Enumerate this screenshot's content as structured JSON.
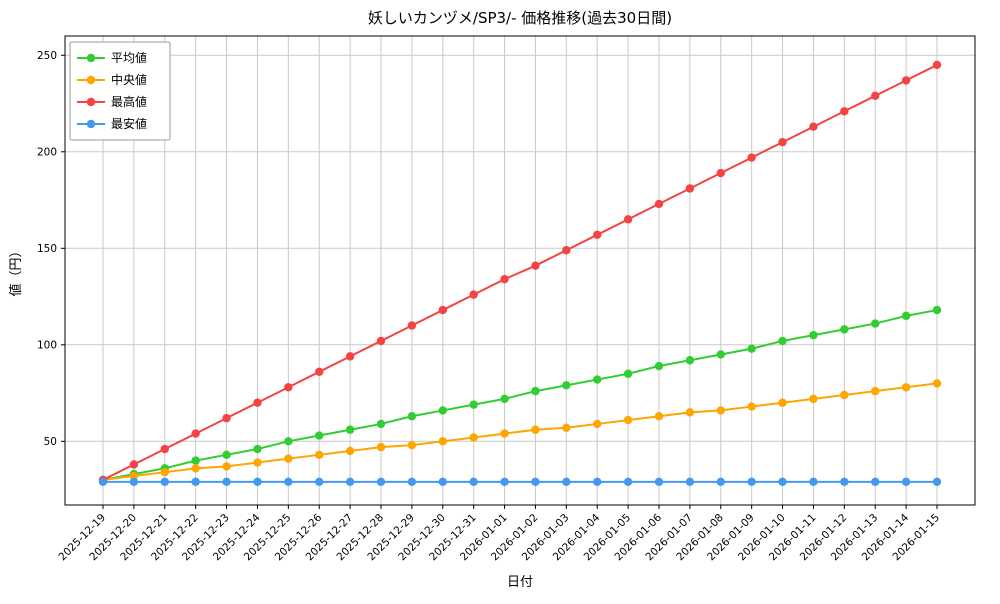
{
  "chart_data": {
    "type": "line",
    "title": "妖しいカンヅメ/SP3/- 価格推移(過去30日間)",
    "xlabel": "日付",
    "ylabel": "値（円）",
    "ylim": [
      17,
      260
    ],
    "yticks": [
      50,
      100,
      150,
      200,
      250
    ],
    "grid": true,
    "legend_position": "upper-left",
    "categories": [
      "2025-12-19",
      "2025-12-20",
      "2025-12-21",
      "2025-12-22",
      "2025-12-23",
      "2025-12-24",
      "2025-12-25",
      "2025-12-26",
      "2025-12-27",
      "2025-12-28",
      "2025-12-29",
      "2025-12-30",
      "2025-12-31",
      "2026-01-01",
      "2026-01-02",
      "2026-01-03",
      "2026-01-04",
      "2026-01-05",
      "2026-01-06",
      "2026-01-07",
      "2026-01-08",
      "2026-01-09",
      "2026-01-10",
      "2026-01-11",
      "2026-01-12",
      "2026-01-13",
      "2026-01-14",
      "2026-01-15"
    ],
    "series": [
      {
        "key": "average",
        "name": "平均値",
        "color": "#32cd32",
        "values": [
          30,
          33,
          36,
          40,
          43,
          46,
          50,
          53,
          56,
          59,
          63,
          66,
          69,
          72,
          76,
          79,
          82,
          85,
          89,
          92,
          95,
          98,
          102,
          105,
          108,
          111,
          115,
          118
        ]
      },
      {
        "key": "median",
        "name": "中央値",
        "color": "#ffa500",
        "values": [
          30,
          32,
          34,
          36,
          37,
          39,
          41,
          43,
          45,
          47,
          48,
          50,
          52,
          54,
          56,
          57,
          59,
          61,
          63,
          65,
          66,
          68,
          70,
          72,
          74,
          76,
          78,
          80
        ]
      },
      {
        "key": "max",
        "name": "最高値",
        "color": "#f54242",
        "values": [
          30,
          38,
          46,
          54,
          62,
          70,
          78,
          86,
          94,
          102,
          110,
          118,
          126,
          134,
          141,
          149,
          157,
          165,
          173,
          181,
          189,
          197,
          205,
          213,
          221,
          229,
          237,
          245
        ]
      },
      {
        "key": "min",
        "name": "最安値",
        "color": "#4499ee",
        "values": [
          29,
          29,
          29,
          29,
          29,
          29,
          29,
          29,
          29,
          29,
          29,
          29,
          29,
          29,
          29,
          29,
          29,
          29,
          29,
          29,
          29,
          29,
          29,
          29,
          29,
          29,
          29,
          29
        ]
      }
    ]
  }
}
